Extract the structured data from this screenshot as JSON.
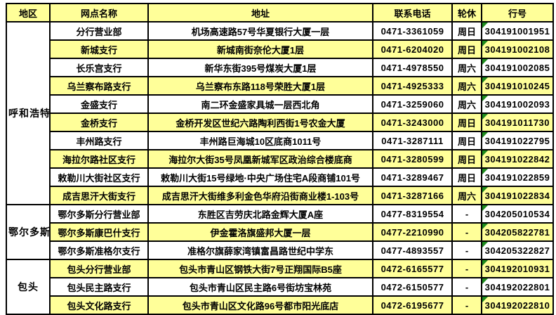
{
  "table": {
    "headers": [
      "地区",
      "网点名称",
      "地址",
      "联系电话",
      "轮休",
      "行号"
    ],
    "regions": [
      {
        "name": "呼和浩特",
        "rowspan": 10
      },
      {
        "name": "鄂尔多斯",
        "rowspan": 3
      },
      {
        "name": "包头",
        "rowspan": 3
      }
    ],
    "rows": [
      {
        "branch": "分行营业部",
        "address": "机场高速路57号华夏银行大厦一层",
        "phone": "0471-3361059",
        "dayoff": "周日",
        "bank_no": "304191001951"
      },
      {
        "branch": "新城支行",
        "address": "新城南街奈伦大厦1层",
        "phone": "0471-6204020",
        "dayoff": "周日",
        "bank_no": "304191002108"
      },
      {
        "branch": "长乐宫支行",
        "address": "新华东街395号煤炭大厦1层",
        "phone": "0471-4978550",
        "dayoff": "周六",
        "bank_no": "304191002085"
      },
      {
        "branch": "乌兰察布路支行",
        "address": "乌兰察布东路118号荣胜大厦1层",
        "phone": "0471-4925333",
        "dayoff": "周六",
        "bank_no": "304191010245"
      },
      {
        "branch": "金盛支行",
        "address": "南二环金盛家具城一层西北角",
        "phone": "0471-3259060",
        "dayoff": "周六",
        "bank_no": "304191002093"
      },
      {
        "branch": "金桥支行",
        "address": "金桥开发区世纪六路陶利西街1号农金大厦",
        "phone": "0471-3243000",
        "dayoff": "周日",
        "bank_no": "304191011730"
      },
      {
        "branch": "丰州路支行",
        "address": "丰州路巨海城10区底商1011号",
        "phone": "0471-3287111",
        "dayoff": "周日",
        "bank_no": "304191022795"
      },
      {
        "branch": "海拉尔路社区支行",
        "address": "海拉尔大街35号凤凰新城军区政治综合楼底商",
        "phone": "0471-3280599",
        "dayoff": "周日",
        "bank_no": "304191022842"
      },
      {
        "branch": "敕勒川大街社区支行",
        "address": "敕勒川大街15号绿地·中央广场住宅A段商铺101号",
        "phone": "0471-3289467",
        "dayoff": "周日",
        "bank_no": "304191022859"
      },
      {
        "branch": "成吉思汗大街支行",
        "address": "成吉思汗大街维多利金色华府沿街商业楼1-103号",
        "phone": "0471-3287166",
        "dayoff": "周六",
        "bank_no": "304191022834"
      },
      {
        "branch": "鄂尔多斯分行营业部",
        "address": "东胜区吉劳庆北路金辉大厦A座",
        "phone": "0477-8319554",
        "dayoff": "-",
        "bank_no": "304205010534"
      },
      {
        "branch": "鄂尔多斯康巴什支行",
        "address": "伊金霍洛旗盛邦大厦一层",
        "phone": "0477-2210990",
        "dayoff": "-",
        "bank_no": "304205822781"
      },
      {
        "branch": "鄂尔多斯准格尔支行",
        "address": "准格尔旗薛家湾镇富昌路世纪中学东",
        "phone": "0477-4893557",
        "dayoff": "-",
        "bank_no": "304205322827"
      },
      {
        "branch": "包头分行营业部",
        "address": "包头市青山区钢铁大街7号正翔国际B5座",
        "phone": "0472-6165577",
        "dayoff": "-",
        "bank_no": "304192010931"
      },
      {
        "branch": "包头民主路支行",
        "address": "包头市青山区民主路6号街坊宝林苑",
        "phone": "0472-6150577",
        "dayoff": "-",
        "bank_no": "304192022801"
      },
      {
        "branch": "包头文化路支行",
        "address": "包头市青山区文化路96号都市阳光底店",
        "phone": "0472-6195677",
        "dayoff": "-",
        "bank_no": "304192022810"
      }
    ]
  },
  "colors": {
    "header_bg": "#FFFF99",
    "stripe_bg": "#FFFF99",
    "row_bg": "#FFFFFF",
    "border": "#000000",
    "error_triangle": "#1E8C1E"
  }
}
